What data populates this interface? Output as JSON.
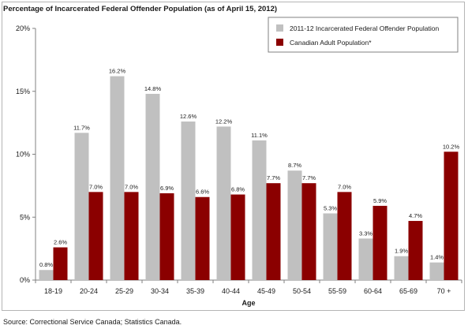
{
  "chart_data": {
    "type": "bar",
    "title": "Percentage of Incarcerated Federal Offender Population (as of April 15, 2012)",
    "xlabel": "Age",
    "ylabel": "",
    "ylim": [
      0,
      20
    ],
    "yticks": [
      "0%",
      "5%",
      "10%",
      "15%",
      "20%"
    ],
    "ytick_values": [
      0,
      5,
      10,
      15,
      20
    ],
    "categories": [
      "18-19",
      "20-24",
      "25-29",
      "30-34",
      "35-39",
      "40-44",
      "45-49",
      "50-54",
      "55-59",
      "60-64",
      "65-69",
      "70 +"
    ],
    "series": [
      {
        "name": "2011-12 Incarcerated Federal Offender Population",
        "color": "#c0c0c0",
        "values": [
          0.8,
          11.7,
          16.2,
          14.8,
          12.6,
          12.2,
          11.1,
          8.7,
          5.3,
          3.3,
          1.9,
          1.4
        ],
        "labels": [
          "0.8%",
          "11.7%",
          "16.2%",
          "14.8%",
          "12.6%",
          "12.2%",
          "11.1%",
          "8.7%",
          "5.3%",
          "3.3%",
          "1.9%",
          "1.4%"
        ]
      },
      {
        "name": "Canadian Adult Population*",
        "color": "#8b0000",
        "values": [
          2.6,
          7.0,
          7.0,
          6.9,
          6.6,
          6.8,
          7.7,
          7.7,
          7.0,
          5.9,
          4.7,
          10.2
        ],
        "labels": [
          "2.6%",
          "7.0%",
          "7.0%",
          "6.9%",
          "6.6%",
          "6.8%",
          "7.7%",
          "7.7%",
          "7.0%",
          "5.9%",
          "4.7%",
          "10.2%"
        ]
      }
    ],
    "grid": false,
    "legend": "top-right"
  },
  "source": "Source:  Correctional Service Canada; Statistics Canada."
}
